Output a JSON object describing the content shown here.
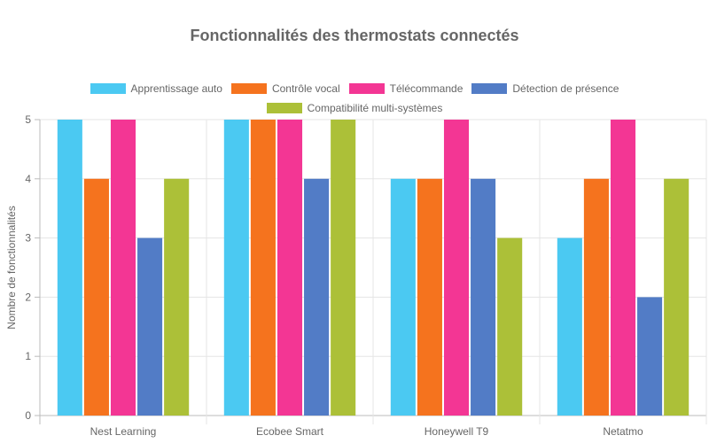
{
  "title": "Fonctionnalités des thermostats connectés",
  "legend": [
    {
      "label": "Apprentissage auto",
      "color": "#4bc9f2"
    },
    {
      "label": "Contrôle vocal",
      "color": "#f5731e"
    },
    {
      "label": "Télécommande",
      "color": "#f33694"
    },
    {
      "label": "Détection de présence",
      "color": "#527cc6"
    },
    {
      "label": "Compatibilité multi-systèmes",
      "color": "#acc038"
    }
  ],
  "chart_data": {
    "type": "bar",
    "title": "Fonctionnalités des thermostats connectés",
    "xlabel": "",
    "ylabel": "Nombre de fonctionnalités",
    "ylim": [
      0,
      5
    ],
    "yticks": [
      0,
      1,
      2,
      3,
      4,
      5
    ],
    "grid": true,
    "legend_position": "top",
    "categories": [
      "Nest Learning",
      "Ecobee Smart",
      "Honeywell T9",
      "Netatmo"
    ],
    "series": [
      {
        "name": "Apprentissage auto",
        "color": "#4bc9f2",
        "values": [
          5,
          5,
          4,
          3
        ]
      },
      {
        "name": "Contrôle vocal",
        "color": "#f5731e",
        "values": [
          4,
          5,
          4,
          4
        ]
      },
      {
        "name": "Télécommande",
        "color": "#f33694",
        "values": [
          5,
          5,
          5,
          5
        ]
      },
      {
        "name": "Détection de présence",
        "color": "#527cc6",
        "values": [
          3,
          4,
          4,
          2
        ]
      },
      {
        "name": "Compatibilité multi-systèmes",
        "color": "#acc038",
        "values": [
          4,
          5,
          3,
          4
        ]
      }
    ]
  }
}
